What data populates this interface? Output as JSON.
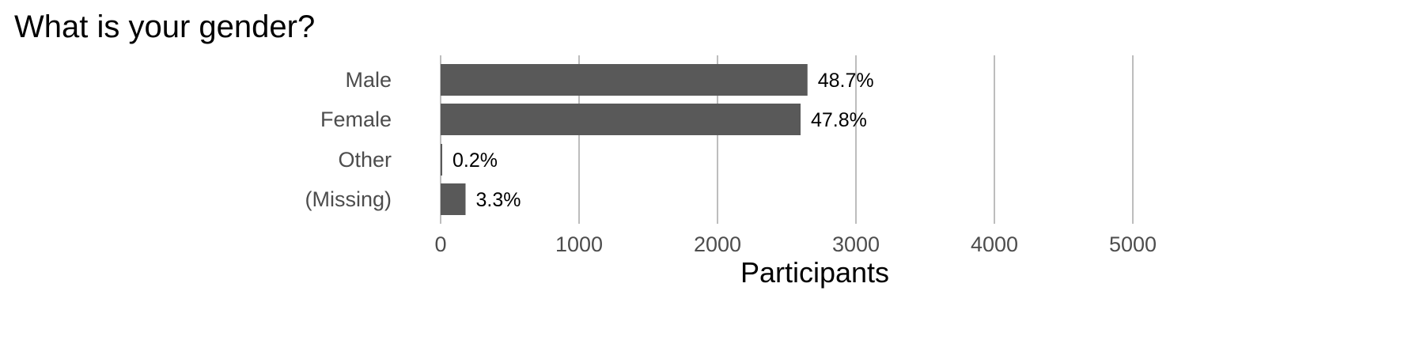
{
  "chart_data": {
    "type": "bar",
    "orientation": "horizontal",
    "title": "What is your gender?",
    "xlabel": "Participants",
    "ylabel": "",
    "categories": [
      "Male",
      "Female",
      "Other",
      "(Missing)"
    ],
    "values": [
      2650,
      2600,
      10,
      180
    ],
    "data_labels": [
      "48.7%",
      "47.8%",
      "0.2%",
      "3.3%"
    ],
    "xlim": [
      0,
      5600
    ],
    "xticks": [
      0,
      1000,
      2000,
      3000,
      4000,
      5000
    ],
    "xtick_labels": [
      "0",
      "1000",
      "2000",
      "3000",
      "4000",
      "5000"
    ],
    "grid": "vertical-major",
    "legend": "none",
    "colors": {
      "bar": "#595959",
      "grid": "#bdbdbd",
      "background": "#ffffff"
    }
  }
}
